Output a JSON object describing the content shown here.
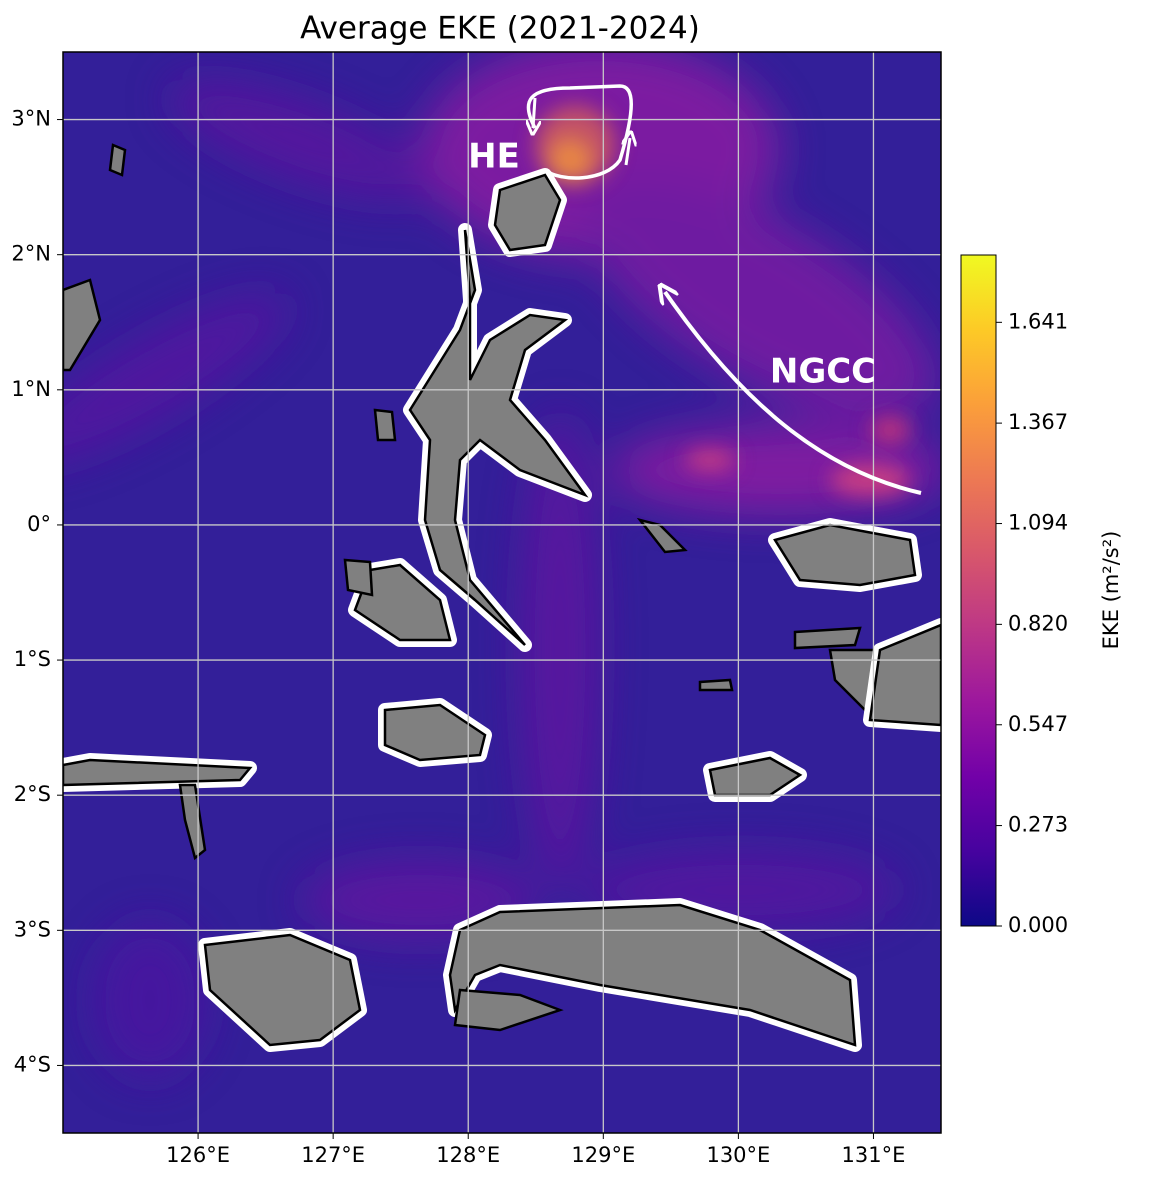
{
  "chart_data": {
    "type": "map",
    "title": "Average EKE (2021-2024)",
    "xlim": [
      125,
      131.5
    ],
    "ylim": [
      -4.5,
      3.5
    ],
    "xticks": [
      {
        "value": 126,
        "label": "126°E"
      },
      {
        "value": 127,
        "label": "127°E"
      },
      {
        "value": 128,
        "label": "128°E"
      },
      {
        "value": 129,
        "label": "129°E"
      },
      {
        "value": 130,
        "label": "130°E"
      },
      {
        "value": 131,
        "label": "131°E"
      }
    ],
    "yticks": [
      {
        "value": 3,
        "label": "3°N"
      },
      {
        "value": 2,
        "label": "2°N"
      },
      {
        "value": 1,
        "label": "1°N"
      },
      {
        "value": 0,
        "label": "0°"
      },
      {
        "value": -1,
        "label": "1°S"
      },
      {
        "value": -2,
        "label": "2°S"
      },
      {
        "value": -3,
        "label": "3°S"
      },
      {
        "value": -4,
        "label": "4°S"
      }
    ],
    "grid": true,
    "colorbar": {
      "label": "EKE (m²/s²)",
      "cmap": "plasma",
      "clim": [
        0,
        1.824
      ],
      "ticks": [
        {
          "value": 0,
          "label": "0.000"
        },
        0.273,
        0.547,
        {
          "value": 0.82,
          "label": "0.820"
        },
        1.094,
        1.367,
        1.641
      ]
    },
    "annotations": [
      "HE",
      "NGCC"
    ]
  }
}
